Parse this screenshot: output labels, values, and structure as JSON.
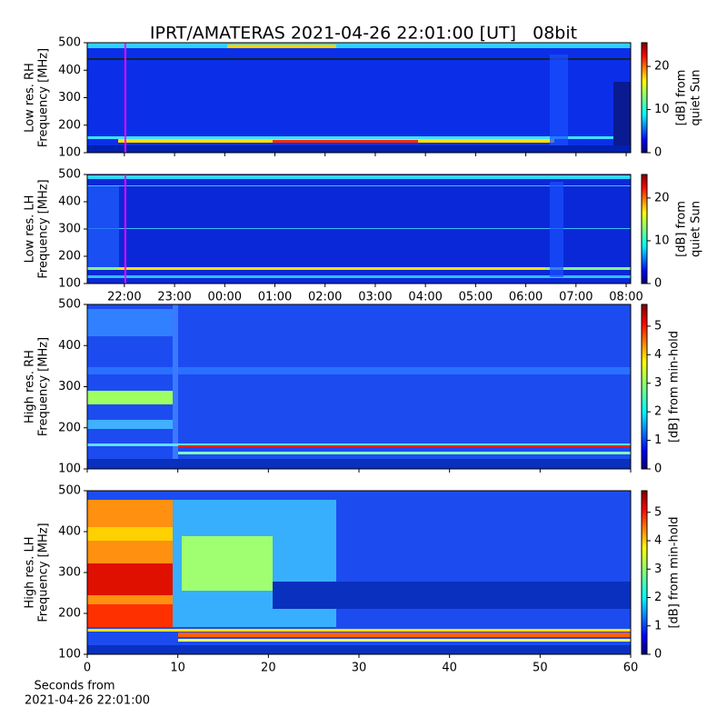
{
  "title": "IPRT/AMATERAS 2021-04-26 22:01:00 [UT]   08bit",
  "chart_data": [
    {
      "type": "heatmap",
      "ylabel": [
        "Low res. RH",
        "Frequency [MHz]"
      ],
      "ylim": [
        100,
        500
      ],
      "yticks": [
        100,
        200,
        300,
        400,
        500
      ],
      "xlim": [
        21.26,
        32.09
      ],
      "cursor": {
        "x": 22.02,
        "color": "#ff00ff"
      },
      "colorbar": {
        "label": [
          "[dB] from",
          "quiet Sun"
        ],
        "lim": [
          0,
          25.5
        ],
        "ticks": [
          0,
          10,
          20
        ]
      }
    },
    {
      "type": "heatmap",
      "ylabel": [
        "Low res. LH",
        "Frequency [MHz]"
      ],
      "ylim": [
        100,
        500
      ],
      "yticks": [
        100,
        200,
        300,
        400,
        500
      ],
      "xlim": [
        21.26,
        32.09
      ],
      "xticks": [
        {
          "value": 22,
          "label": "22:00"
        },
        {
          "value": 23,
          "label": "23:00"
        },
        {
          "value": 24,
          "label": "00:00"
        },
        {
          "value": 25,
          "label": "01:00"
        },
        {
          "value": 26,
          "label": "02:00"
        },
        {
          "value": 27,
          "label": "03:00"
        },
        {
          "value": 28,
          "label": "04:00"
        },
        {
          "value": 29,
          "label": "05:00"
        },
        {
          "value": 30,
          "label": "06:00"
        },
        {
          "value": 31,
          "label": "07:00"
        },
        {
          "value": 32,
          "label": "08:00"
        }
      ],
      "cursor": {
        "x": 22.02,
        "color": "#ff00ff"
      },
      "colorbar": {
        "label": [
          "[dB] from",
          "quiet Sun"
        ],
        "lim": [
          0,
          25.5
        ],
        "ticks": [
          0,
          10,
          20
        ]
      }
    },
    {
      "type": "heatmap",
      "ylabel": [
        "High res. RH",
        "Frequency [MHz]"
      ],
      "ylim": [
        100,
        500
      ],
      "yticks": [
        100,
        200,
        300,
        400,
        500
      ],
      "xlim": [
        0,
        60
      ],
      "colorbar": {
        "label": [
          "[dB] from min-hold"
        ],
        "lim": [
          0,
          5.76
        ],
        "ticks": [
          0,
          1,
          2,
          3,
          4,
          5
        ]
      }
    },
    {
      "type": "heatmap",
      "ylabel": [
        "High res. LH",
        "Frequency [MHz]"
      ],
      "ylim": [
        100,
        500
      ],
      "yticks": [
        100,
        200,
        300,
        400,
        500
      ],
      "xlim": [
        0,
        60
      ],
      "xticks": [
        0,
        10,
        20,
        30,
        40,
        50,
        60
      ],
      "xlabel": [
        "Seconds from",
        "2021-04-26 22:01:00"
      ],
      "colorbar": {
        "label": [
          "[dB] from min-hold"
        ],
        "lim": [
          0,
          5.76
        ],
        "ticks": [
          0,
          1,
          2,
          3,
          4,
          5
        ]
      }
    }
  ]
}
